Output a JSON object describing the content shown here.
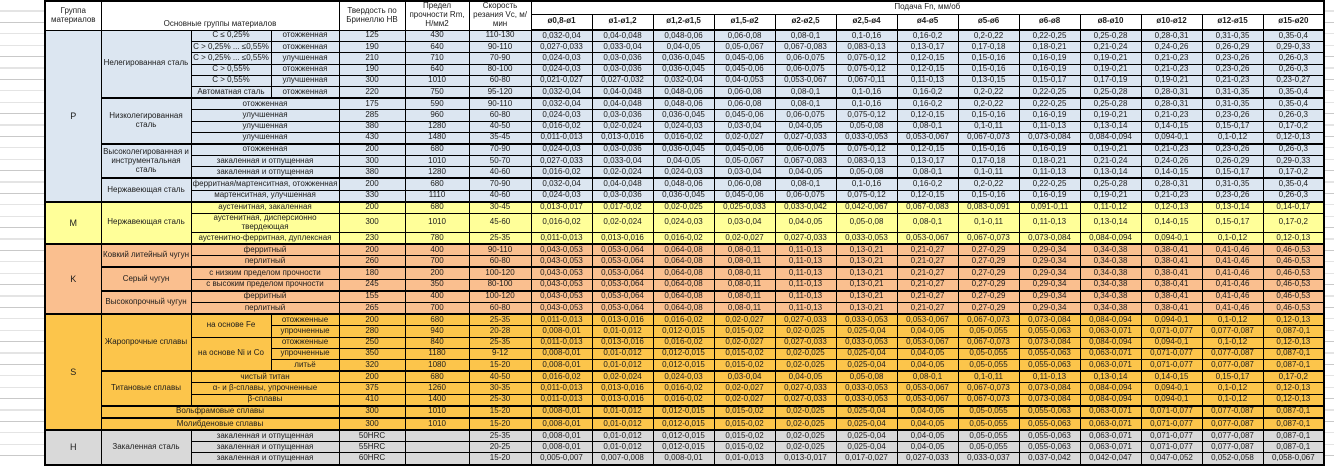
{
  "table": {
    "header": {
      "group": "Группа материалов",
      "main_groups": "Основные группы материалов",
      "hardness": "Твердость по Бринеллю HB",
      "strength": "Предел прочности Rm, Н/мм2",
      "speed": "Скорость резания Vc, м/мин",
      "feed": "Подача Fn, мм/об",
      "diameters": [
        "ø0,8-ø1",
        "ø1-ø1,2",
        "ø1,2-ø1,5",
        "ø1,5-ø2",
        "ø2-ø2,5",
        "ø2,5-ø4",
        "ø4-ø5",
        "ø5-ø6",
        "ø6-ø8",
        "ø8-ø10",
        "ø10-ø12",
        "ø12-ø15",
        "ø15-ø20"
      ]
    },
    "group_colors": {
      "p": "#dce6f1",
      "m": "#ffff99",
      "k": "#fabf8f",
      "s": "#fcc54b",
      "h": "#d9d9d9"
    },
    "feeds": {
      "A": [
        "0,032-0,04",
        "0,04-0,048",
        "0,048-0,06",
        "0,06-0,08",
        "0,08-0,1",
        "0,1-0,16",
        "0,16-0,2",
        "0,2-0,22",
        "0,22-0,25",
        "0,25-0,28",
        "0,28-0,31",
        "0,31-0,35",
        "0,35-0,4"
      ],
      "B": [
        "0,027-0,033",
        "0,033-0,04",
        "0,04-0,05",
        "0,05-0,067",
        "0,067-0,083",
        "0,083-0,13",
        "0,13-0,17",
        "0,17-0,18",
        "0,18-0,21",
        "0,21-0,24",
        "0,24-0,26",
        "0,26-0,29",
        "0,29-0,33"
      ],
      "C": [
        "0,024-0,03",
        "0,03-0,036",
        "0,036-0,045",
        "0,045-0,06",
        "0,06-0,075",
        "0,075-0,12",
        "0,12-0,15",
        "0,15-0,16",
        "0,16-0,19",
        "0,19-0,21",
        "0,21-0,23",
        "0,23-0,26",
        "0,26-0,3"
      ],
      "D": [
        "0,021-0,027",
        "0,027-0,032",
        "0,032-0,04",
        "0,04-0,053",
        "0,053-0,067",
        "0,067-0,11",
        "0,11-0,13",
        "0,13-0,15",
        "0,15-0,17",
        "0,17-0,19",
        "0,19-0,21",
        "0,21-0,23",
        "0,23-0,27"
      ],
      "E": [
        "0,016-0,02",
        "0,02-0,024",
        "0,024-0,03",
        "0,03-0,04",
        "0,04-0,05",
        "0,05-0,08",
        "0,08-0,1",
        "0,1-0,11",
        "0,11-0,13",
        "0,13-0,14",
        "0,14-0,15",
        "0,15-0,17",
        "0,17-0,2"
      ],
      "F": [
        "0,011-0,013",
        "0,013-0,016",
        "0,016-0,02",
        "0,02-0,027",
        "0,027-0,033",
        "0,033-0,053",
        "0,053-0,067",
        "0,067-0,073",
        "0,073-0,084",
        "0,084-0,094",
        "0,094-0,1",
        "0,1-0,12",
        "0,12-0,13"
      ],
      "G": [
        "0,013-0,017",
        "0,017-0,02",
        "0,02-0,025",
        "0,025-0,033",
        "0,033-0,042",
        "0,042-0,067",
        "0,067-0,083",
        "0,083-0,091",
        "0,091-0,11",
        "0,11-0,12",
        "0,12-0,13",
        "0,13-0,14",
        "0,14-0,17"
      ],
      "H": [
        "0,008-0,01",
        "0,01-0,012",
        "0,012-0,015",
        "0,015-0,02",
        "0,02-0,025",
        "0,025-0,04",
        "0,04-0,05",
        "0,05-0,055",
        "0,055-0,063",
        "0,063-0,071",
        "0,071-0,077",
        "0,077-0,087",
        "0,087-0,1"
      ],
      "J": [
        "0,005-0,007",
        "0,007-0,008",
        "0,008-0,01",
        "0,01-0,013",
        "0,013-0,017",
        "0,017-0,027",
        "0,027-0,033",
        "0,033-0,037",
        "0,037-0,042",
        "0,042-0,047",
        "0,047-0,052",
        "0,052-0,058",
        "0,058-0,067"
      ],
      "K": [
        "0,043-0,053",
        "0,053-0,064",
        "0,064-0,08",
        "0,08-0,11",
        "0,11-0,13",
        "0,13-0,21",
        "0,21-0,27",
        "0,27-0,29",
        "0,29-0,34",
        "0,34-0,38",
        "0,38-0,41",
        "0,41-0,46",
        "0,46-0,53"
      ]
    },
    "rows": [
      {
        "g": "p",
        "cells": [
          {
            "t": "P",
            "rs": 15,
            "gl": true
          },
          {
            "t": "Нелегированная сталь",
            "rs": 6
          },
          {
            "t": "C ≤ 0,25%"
          },
          {
            "t": "отожженная"
          }
        ],
        "hb": "125",
        "rm": "430",
        "vc": "110-130",
        "f": "A"
      },
      {
        "g": "p",
        "cells": [
          {
            "t": "C > 0,25% ... ≤0,55%"
          },
          {
            "t": "отожженная"
          }
        ],
        "hb": "190",
        "rm": "640",
        "vc": "90-110",
        "f": "B"
      },
      {
        "g": "p",
        "cells": [
          {
            "t": "C > 0,25% ... ≤0,55%"
          },
          {
            "t": "улучшенная"
          }
        ],
        "hb": "210",
        "rm": "710",
        "vc": "70-90",
        "f": "C"
      },
      {
        "g": "p",
        "cells": [
          {
            "t": "C > 0,55%"
          },
          {
            "t": "отожженная"
          }
        ],
        "hb": "190",
        "rm": "640",
        "vc": "80-100",
        "f": "C"
      },
      {
        "g": "p",
        "cells": [
          {
            "t": "C > 0,55%"
          },
          {
            "t": "улучшенная"
          }
        ],
        "hb": "300",
        "rm": "1010",
        "vc": "60-80",
        "f": "D"
      },
      {
        "g": "p",
        "cells": [
          {
            "t": "Автоматная сталь"
          },
          {
            "t": "отожженная"
          }
        ],
        "hb": "220",
        "rm": "750",
        "vc": "95-120",
        "f": "A"
      },
      {
        "g": "p",
        "mtop": true,
        "cells": [
          {
            "t": "Низколегированная сталь",
            "rs": 4
          },
          {
            "t": "отожженная",
            "cs": 2
          }
        ],
        "hb": "175",
        "rm": "590",
        "vc": "90-110",
        "f": "A"
      },
      {
        "g": "p",
        "cells": [
          {
            "t": "улучшенная",
            "cs": 2
          }
        ],
        "hb": "285",
        "rm": "960",
        "vc": "60-80",
        "f": "C"
      },
      {
        "g": "p",
        "cells": [
          {
            "t": "улучшенная",
            "cs": 2
          }
        ],
        "hb": "380",
        "rm": "1280",
        "vc": "40-50",
        "f": "E"
      },
      {
        "g": "p",
        "cells": [
          {
            "t": "улучшенная",
            "cs": 2
          }
        ],
        "hb": "430",
        "rm": "1480",
        "vc": "35-45",
        "f": "F"
      },
      {
        "g": "p",
        "mtop": true,
        "cells": [
          {
            "t": "Высоколегированная и инструментальная сталь",
            "rs": 3
          },
          {
            "t": "отожженная",
            "cs": 2
          }
        ],
        "hb": "200",
        "rm": "680",
        "vc": "70-90",
        "f": "C"
      },
      {
        "g": "p",
        "cells": [
          {
            "t": "закаленная и отпущенная",
            "cs": 2
          }
        ],
        "hb": "300",
        "rm": "1010",
        "vc": "50-70",
        "f": "B"
      },
      {
        "g": "p",
        "cells": [
          {
            "t": "закаленная и отпущенная",
            "cs": 2
          }
        ],
        "hb": "380",
        "rm": "1280",
        "vc": "40-60",
        "f": "E"
      },
      {
        "g": "p",
        "mtop": true,
        "cells": [
          {
            "t": "Нержавеющая сталь",
            "rs": 2
          },
          {
            "t": "ферритная/мартенситная, отожженная",
            "cs": 2
          }
        ],
        "hb": "200",
        "rm": "680",
        "vc": "70-90",
        "f": "A"
      },
      {
        "g": "p",
        "cells": [
          {
            "t": "мартенситная, улучшенная",
            "cs": 2
          }
        ],
        "hb": "330",
        "rm": "1110",
        "vc": "40-60",
        "f": "C"
      },
      {
        "g": "m",
        "gstart": true,
        "cells": [
          {
            "t": "M",
            "rs": 3,
            "gl": true
          },
          {
            "t": "Нержавеющая сталь",
            "rs": 3
          },
          {
            "t": "аустенитная, закаленная",
            "cs": 2
          }
        ],
        "hb": "200",
        "rm": "680",
        "vc": "30-45",
        "f": "G"
      },
      {
        "g": "m",
        "cells": [
          {
            "t": "аустенитная, дисперсионно твердеющая",
            "cs": 2
          }
        ],
        "hb": "300",
        "rm": "1010",
        "vc": "45-60",
        "f": "E"
      },
      {
        "g": "m",
        "cells": [
          {
            "t": "аустенитно-ферритная, дуплексная",
            "cs": 2
          }
        ],
        "hb": "230",
        "rm": "780",
        "vc": "25-35",
        "f": "F"
      },
      {
        "g": "k",
        "gstart": true,
        "cells": [
          {
            "t": "K",
            "rs": 6,
            "gl": true
          },
          {
            "t": "Ковкий литейный чугун",
            "rs": 2
          },
          {
            "t": "ферритный",
            "cs": 2
          }
        ],
        "hb": "200",
        "rm": "400",
        "vc": "90-110",
        "f": "K"
      },
      {
        "g": "k",
        "cells": [
          {
            "t": "перлитный",
            "cs": 2
          }
        ],
        "hb": "260",
        "rm": "700",
        "vc": "60-80",
        "f": "K"
      },
      {
        "g": "k",
        "mtop": true,
        "cells": [
          {
            "t": "Серый чугун",
            "rs": 2
          },
          {
            "t": "с низким пределом прочности",
            "cs": 2
          }
        ],
        "hb": "180",
        "rm": "200",
        "vc": "100-120",
        "f": "K"
      },
      {
        "g": "k",
        "cells": [
          {
            "t": "с высоким пределом прочности",
            "cs": 2
          }
        ],
        "hb": "245",
        "rm": "350",
        "vc": "80-100",
        "f": "K"
      },
      {
        "g": "k",
        "mtop": true,
        "cells": [
          {
            "t": "Высокопрочный чугун",
            "rs": 2
          },
          {
            "t": "ферритный",
            "cs": 2
          }
        ],
        "hb": "155",
        "rm": "400",
        "vc": "100-120",
        "f": "K"
      },
      {
        "g": "k",
        "cells": [
          {
            "t": "перлитный",
            "cs": 2
          }
        ],
        "hb": "265",
        "rm": "700",
        "vc": "60-80",
        "f": "K"
      },
      {
        "g": "s",
        "gstart": true,
        "cells": [
          {
            "t": "S",
            "rs": 10,
            "gl": true
          },
          {
            "t": "Жаропрочные сплавы",
            "rs": 5
          },
          {
            "t": "на основе Fe",
            "rs": 2
          },
          {
            "t": "отожженные"
          }
        ],
        "hb": "200",
        "rm": "680",
        "vc": "25-35",
        "f": "F"
      },
      {
        "g": "s",
        "cells": [
          {
            "t": "упрочненные"
          }
        ],
        "hb": "280",
        "rm": "940",
        "vc": "20-28",
        "f": "H"
      },
      {
        "g": "s",
        "cells": [
          {
            "t": "на основе Ni и Co",
            "rs": 3
          },
          {
            "t": "отожженные"
          }
        ],
        "hb": "250",
        "rm": "840",
        "vc": "25-35",
        "f": "F"
      },
      {
        "g": "s",
        "cells": [
          {
            "t": "упрочненные"
          }
        ],
        "hb": "350",
        "rm": "1180",
        "vc": "9-12",
        "f": "H"
      },
      {
        "g": "s",
        "cells": [
          {
            "t": "литьё"
          }
        ],
        "hb": "320",
        "rm": "1080",
        "vc": "15-20",
        "f": "H"
      },
      {
        "g": "s",
        "mtop": true,
        "cells": [
          {
            "t": "Титановые сплавы",
            "rs": 3
          },
          {
            "t": "чистый титан",
            "cs": 2
          }
        ],
        "hb": "200",
        "rm": "680",
        "vc": "40-50",
        "f": "E"
      },
      {
        "g": "s",
        "cells": [
          {
            "t": "α- и β-сплавы, упрочненные",
            "cs": 2
          }
        ],
        "hb": "375",
        "rm": "1260",
        "vc": "30-35",
        "f": "F"
      },
      {
        "g": "s",
        "cells": [
          {
            "t": "β-сплавы",
            "cs": 2
          }
        ],
        "hb": "410",
        "rm": "1400",
        "vc": "25-30",
        "f": "F"
      },
      {
        "g": "s",
        "mtop": true,
        "cells": [
          {
            "t": "Вольфрамовые сплавы",
            "cs": 3
          }
        ],
        "hb": "300",
        "rm": "1010",
        "vc": "15-20",
        "f": "H"
      },
      {
        "g": "s",
        "mtop": true,
        "cells": [
          {
            "t": "Молибденовые сплавы",
            "cs": 3
          }
        ],
        "hb": "300",
        "rm": "1010",
        "vc": "15-20",
        "f": "H"
      },
      {
        "g": "h",
        "gstart": true,
        "cells": [
          {
            "t": "H",
            "rs": 3,
            "gl": true
          },
          {
            "t": "Закаленная сталь",
            "rs": 3
          },
          {
            "t": "закаленная и отпущенная",
            "cs": 2
          }
        ],
        "hb": "50HRC",
        "rm": "",
        "vc": "25-35",
        "f": "H"
      },
      {
        "g": "h",
        "cells": [
          {
            "t": "закаленная и отпущенная",
            "cs": 2
          }
        ],
        "hb": "55HRC",
        "rm": "",
        "vc": "20-25",
        "f": "H"
      },
      {
        "g": "h",
        "cells": [
          {
            "t": "закаленная и отпущенная",
            "cs": 2
          }
        ],
        "hb": "60HRC",
        "rm": "",
        "vc": "15-20",
        "f": "J"
      }
    ]
  }
}
